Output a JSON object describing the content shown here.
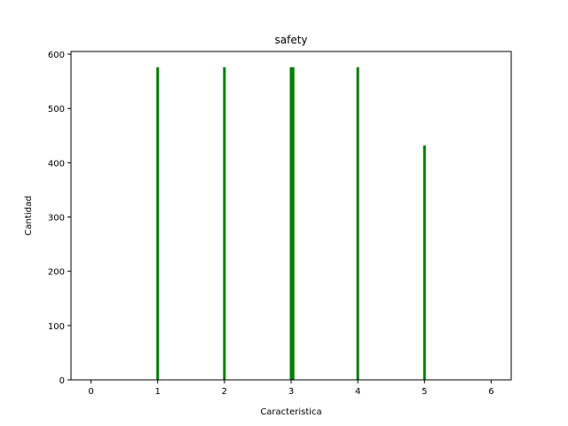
{
  "chart_data": {
    "type": "bar",
    "title": "safety",
    "xlabel": "Caracteristica",
    "ylabel": "Cantidad",
    "x": [
      1,
      2,
      3,
      3.03,
      4,
      5
    ],
    "values": [
      576,
      576,
      576,
      576,
      576,
      432
    ],
    "xlim": [
      -0.3,
      6.3
    ],
    "ylim": [
      0,
      605
    ],
    "xticks": [
      0,
      1,
      2,
      3,
      4,
      5,
      6
    ],
    "yticks": [
      0,
      100,
      200,
      300,
      400,
      500,
      600
    ],
    "bar_color": "#008000",
    "grid": false,
    "legend": "none"
  }
}
